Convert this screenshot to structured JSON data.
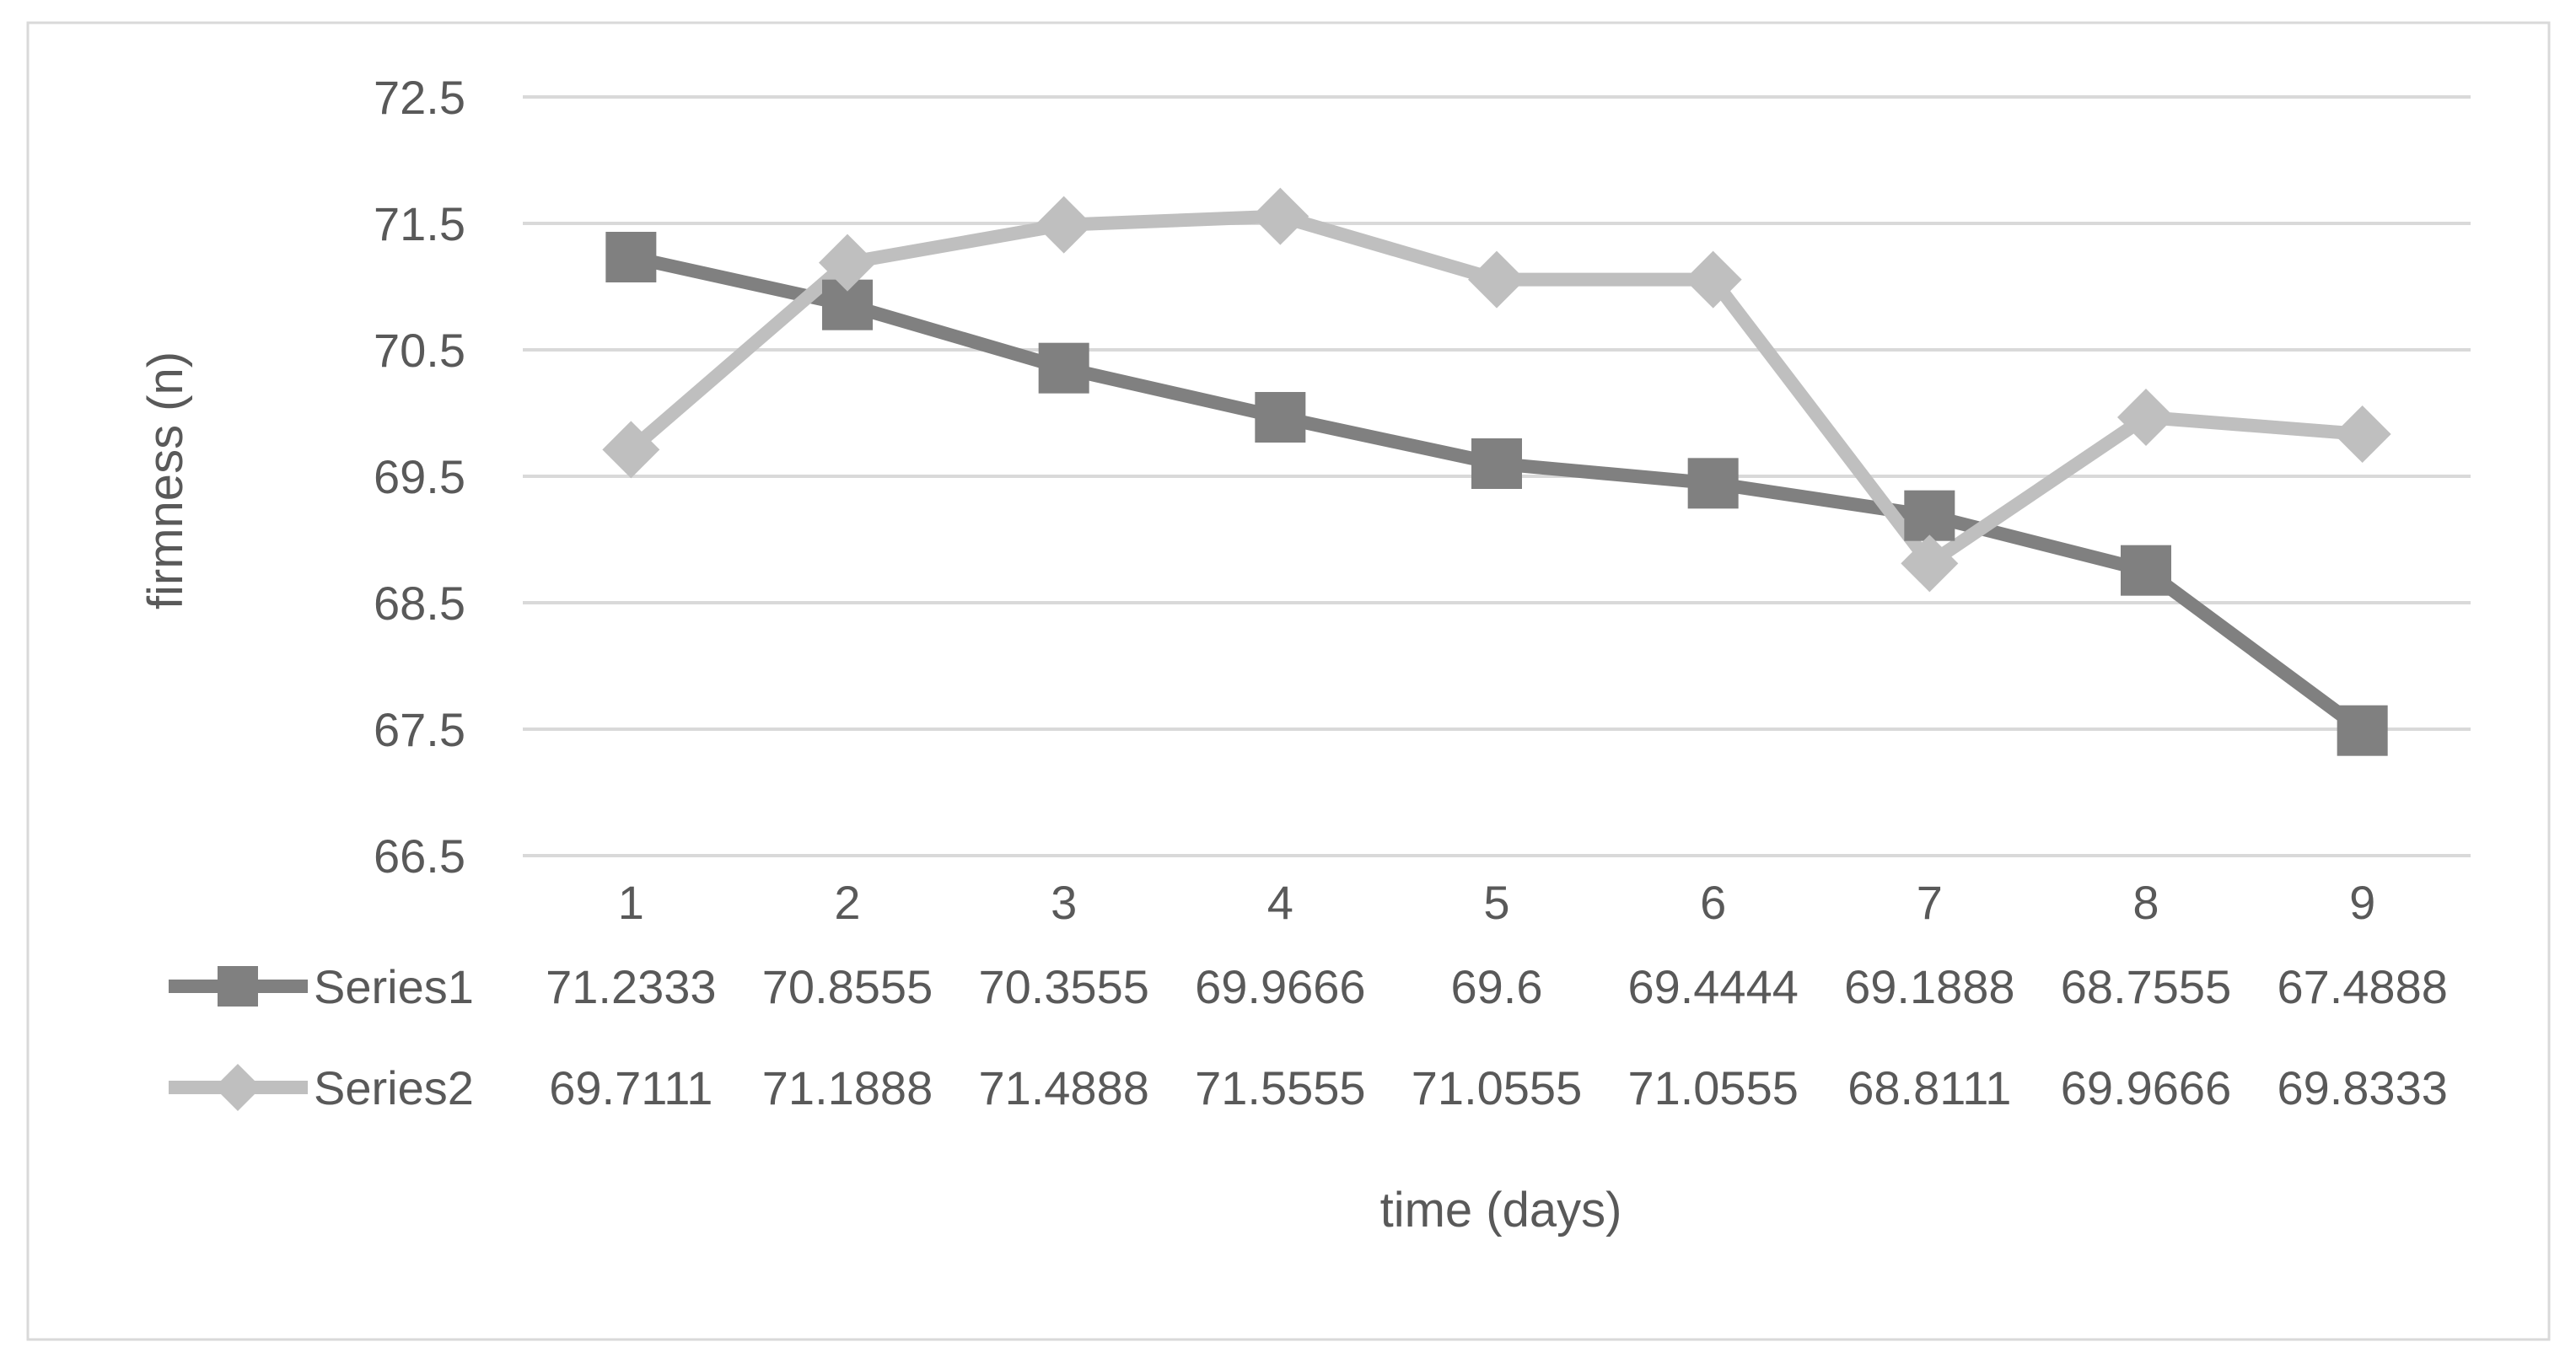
{
  "chart_data": {
    "type": "line",
    "title": "",
    "xlabel": "time (days)",
    "ylabel": "firmness (n)",
    "categories": [
      "1",
      "2",
      "3",
      "4",
      "5",
      "6",
      "7",
      "8",
      "9"
    ],
    "ylim": [
      66.5,
      72.5
    ],
    "yticks": [
      "66.5",
      "67.5",
      "68.5",
      "69.5",
      "70.5",
      "71.5",
      "72.5"
    ],
    "grid": true,
    "legend": "data-table-below",
    "series": [
      {
        "name": "Series1",
        "marker": "square",
        "color": "#808080",
        "values": [
          71.2333,
          70.8555,
          70.3555,
          69.9666,
          69.6,
          69.4444,
          69.1888,
          68.7555,
          67.4888
        ],
        "labels": [
          "71.2333",
          "70.8555",
          "70.3555",
          "69.9666",
          "69.6",
          "69.4444",
          "69.1888",
          "68.7555",
          "67.4888"
        ]
      },
      {
        "name": "Series2",
        "marker": "diamond",
        "color": "#bfbfbf",
        "values": [
          69.7111,
          71.1888,
          71.4888,
          71.5555,
          71.0555,
          71.0555,
          68.8111,
          69.9666,
          69.8333
        ],
        "labels": [
          "69.7111",
          "71.1888",
          "71.4888",
          "71.5555",
          "71.0555",
          "71.0555",
          "68.8111",
          "69.9666",
          "69.8333"
        ]
      }
    ]
  }
}
